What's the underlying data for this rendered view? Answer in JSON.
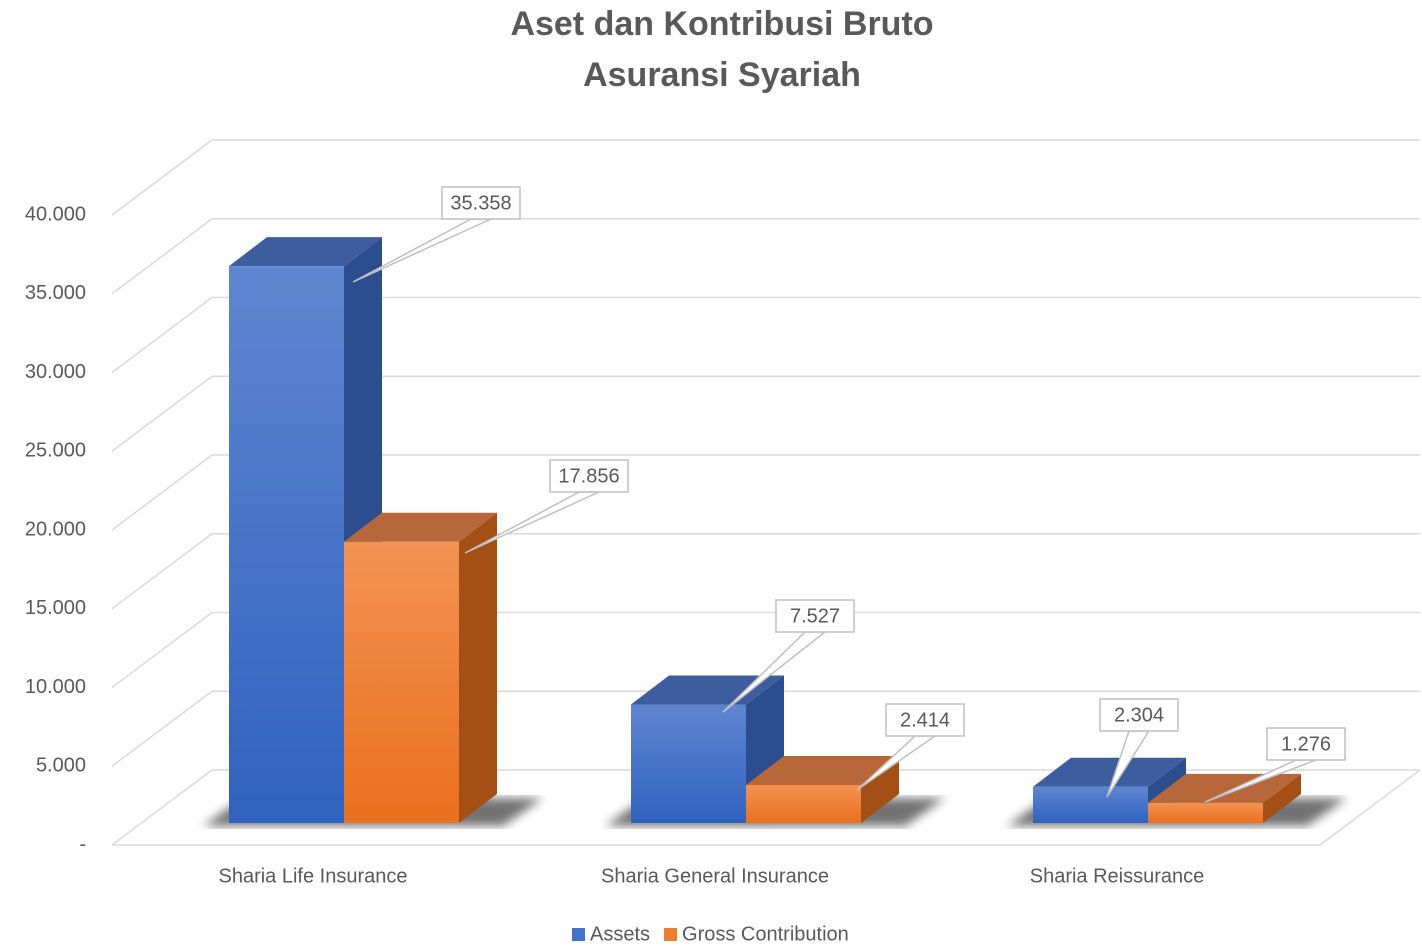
{
  "chart_data": {
    "type": "bar3d",
    "title": [
      "Aset dan Kontribusi Bruto",
      "Asuransi Syariah"
    ],
    "categories": [
      "Sharia Life Insurance",
      "Sharia General Insurance",
      "Sharia Reissurance"
    ],
    "series": [
      {
        "name": "Assets",
        "color": "#4472c4",
        "values": [
          35358,
          7527,
          2304
        ],
        "value_labels": [
          "35.358",
          "7.527",
          "2.304"
        ]
      },
      {
        "name": "Gross Contribution",
        "color": "#ed7d31",
        "values": [
          17856,
          2414,
          1276
        ],
        "value_labels": [
          "17.856",
          "2.414",
          "1.276"
        ]
      }
    ],
    "ylim": [
      0,
      40000
    ],
    "yticks": [
      {
        "value": 0,
        "label": "-"
      },
      {
        "value": 5000,
        "label": "5.000"
      },
      {
        "value": 10000,
        "label": "10.000"
      },
      {
        "value": 15000,
        "label": "15.000"
      },
      {
        "value": 20000,
        "label": "20.000"
      },
      {
        "value": 25000,
        "label": "25.000"
      },
      {
        "value": 30000,
        "label": "30.000"
      },
      {
        "value": 35000,
        "label": "35.000"
      },
      {
        "value": 40000,
        "label": "40.000"
      }
    ],
    "grid": true,
    "legend": "bottom"
  }
}
